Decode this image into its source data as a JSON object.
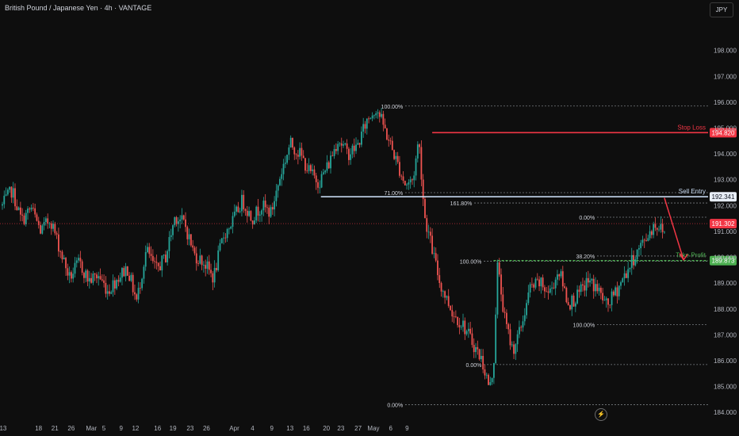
{
  "header": {
    "title": "British Pound / Japanese Yen · 4h · VANTAGE",
    "currency": "JPY"
  },
  "colors": {
    "background": "#0e0e0e",
    "up": "#26a69a",
    "down": "#ef5350",
    "stop": "#f23645",
    "entry": "#c5d7ee",
    "target": "#4caf50",
    "current": "#f23645",
    "fib": "#9aa0a6"
  },
  "chart_data": {
    "type": "candlestick",
    "title": "British Pound / Japanese Yen · 4h · VANTAGE",
    "ylim": [
      183.7,
      199.4
    ],
    "y_ticks": [
      184,
      185,
      186,
      187,
      188,
      189,
      190,
      191,
      192,
      193,
      194,
      195,
      196,
      197,
      198
    ],
    "y_tick_labels": [
      "184.000",
      "185.000",
      "186.000",
      "187.000",
      "188.000",
      "189.000",
      "190.000",
      "191.000",
      "192.000",
      "193.000",
      "194.000",
      "195.000",
      "196.000",
      "197.000",
      "198.000"
    ],
    "x_tick_labels": [
      "13",
      "18",
      "21",
      "26",
      "Mar",
      "5",
      "9",
      "12",
      "16",
      "19",
      "23",
      "26",
      "Apr",
      "4",
      "9",
      "13",
      "16",
      "20",
      "23",
      "27",
      "May",
      "6",
      "9"
    ],
    "candle_count": 366,
    "path": [
      [
        0,
        192.0
      ],
      [
        5,
        192.6
      ],
      [
        10,
        191.4
      ],
      [
        15,
        191.9
      ],
      [
        20,
        191.0
      ],
      [
        25,
        191.5
      ],
      [
        30,
        190.3
      ],
      [
        35,
        189.2
      ],
      [
        40,
        189.8
      ],
      [
        45,
        189.1
      ],
      [
        50,
        189.3
      ],
      [
        55,
        188.7
      ],
      [
        60,
        189.2
      ],
      [
        65,
        189.6
      ],
      [
        70,
        188.3
      ],
      [
        75,
        190.3
      ],
      [
        80,
        189.5
      ],
      [
        85,
        190.0
      ],
      [
        90,
        191.6
      ],
      [
        95,
        191.3
      ],
      [
        100,
        190.1
      ],
      [
        105,
        189.8
      ],
      [
        110,
        189.2
      ],
      [
        115,
        190.8
      ],
      [
        120,
        191.4
      ],
      [
        125,
        192.2
      ],
      [
        130,
        191.5
      ],
      [
        135,
        192.0
      ],
      [
        140,
        191.7
      ],
      [
        145,
        193.2
      ],
      [
        150,
        194.4
      ],
      [
        155,
        194.0
      ],
      [
        160,
        193.3
      ],
      [
        165,
        192.9
      ],
      [
        170,
        193.6
      ],
      [
        175,
        194.6
      ],
      [
        180,
        194.0
      ],
      [
        185,
        194.3
      ],
      [
        190,
        195.3
      ],
      [
        195,
        195.8
      ],
      [
        200,
        194.8
      ],
      [
        205,
        193.8
      ],
      [
        210,
        192.8
      ],
      [
        214,
        193.0
      ],
      [
        217,
        194.6
      ],
      [
        220,
        191.6
      ],
      [
        228,
        189.0
      ],
      [
        235,
        187.8
      ],
      [
        240,
        187.4
      ],
      [
        245,
        186.7
      ],
      [
        250,
        186.0
      ],
      [
        254,
        184.9
      ],
      [
        256,
        185.8
      ],
      [
        258,
        189.7
      ],
      [
        262,
        187.5
      ],
      [
        266,
        186.4
      ],
      [
        270,
        187.2
      ],
      [
        275,
        188.8
      ],
      [
        280,
        189.0
      ],
      [
        285,
        188.6
      ],
      [
        290,
        189.5
      ],
      [
        295,
        188.2
      ],
      [
        300,
        188.5
      ],
      [
        305,
        189.1
      ],
      [
        310,
        188.8
      ],
      [
        315,
        188.1
      ],
      [
        320,
        188.7
      ],
      [
        325,
        189.4
      ],
      [
        330,
        190.1
      ],
      [
        335,
        190.7
      ],
      [
        340,
        191.3
      ],
      [
        345,
        191.0
      ]
    ],
    "price_levels": [
      {
        "label": "Stop Loss",
        "value": 194.82,
        "value_label": "194.820",
        "x_start_index": 224
      },
      {
        "label": "Sell Entry",
        "value": 192.341,
        "value_label": "192.341",
        "x_start_index": 166
      },
      {
        "label": "Take Profit",
        "value": 189.873,
        "value_label": "189.873",
        "x_start_index": 256
      }
    ],
    "current_price": {
      "value": 191.302,
      "value_label": "191.302"
    },
    "fibonacci": [
      {
        "group": "A",
        "label": "100.00%",
        "value": 195.85,
        "x_start_index": 210
      },
      {
        "group": "A",
        "label": "71.00%",
        "value": 192.5,
        "x_start_index": 210
      },
      {
        "group": "A",
        "label": "0.00%",
        "value": 184.3,
        "x_start_index": 210
      },
      {
        "group": "B",
        "label": "100.00%",
        "value": 189.85,
        "x_start_index": 251
      },
      {
        "group": "B",
        "label": "0.00%",
        "value": 185.85,
        "x_start_index": 251
      },
      {
        "group": "C",
        "label": "161.80%",
        "value": 192.1,
        "x_start_index": 246
      },
      {
        "group": "C",
        "label": "0.00%",
        "value": 191.55,
        "x_start_index": 310
      },
      {
        "group": "C",
        "label": "38.20%",
        "value": 190.05,
        "x_start_index": 310
      },
      {
        "group": "C",
        "label": "100.00%",
        "value": 187.4,
        "x_start_index": 310
      }
    ],
    "projection": {
      "from_index": 345,
      "from_value": 192.3,
      "to_index": 355,
      "to_value": 189.9
    }
  }
}
